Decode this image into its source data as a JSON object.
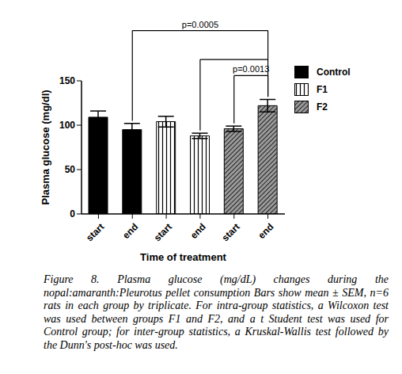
{
  "chart_data": {
    "type": "bar",
    "categories": [
      "start",
      "end",
      "start",
      "end",
      "start",
      "end"
    ],
    "series": [
      {
        "name": "Control",
        "color": "#000000",
        "values": [
          109,
          95,
          null,
          null,
          null,
          null
        ],
        "errors": [
          7,
          7,
          null,
          null,
          null,
          null
        ]
      },
      {
        "name": "F1",
        "color": "#ffffff",
        "values": [
          null,
          null,
          104,
          88,
          null,
          null
        ],
        "errors": [
          null,
          null,
          6,
          3,
          null,
          null
        ]
      },
      {
        "name": "F2",
        "color": "#9a9a9a",
        "values": [
          null,
          null,
          null,
          null,
          96,
          122
        ],
        "errors": [
          null,
          null,
          null,
          null,
          3,
          7
        ]
      }
    ],
    "y_label": "Plasma glucose (mg/dl)",
    "x_label": "Time of treatment",
    "ylim": [
      0,
      150
    ],
    "yticks": [
      0,
      50,
      100,
      150
    ],
    "grid": false,
    "legend": "right",
    "annotations": [
      {
        "text": "p=0.0005",
        "bars": [
          1,
          3,
          5
        ]
      },
      {
        "text": "p=0.0013",
        "bars": [
          4,
          5
        ]
      }
    ],
    "caption": "Figure 8. Plasma glucose (mg/dL) changes during the nopal:amaranth:Pleurotus pellet consumption Bars show mean ± SEM, n=6 rats in each group by triplicate. For intra-group statistics, a Wilcoxon test was used between groups F1 and F2, and a t Student test was used for Control group; for inter-group statistics, a Kruskal-Wallis test followed by the Dunn's post-hoc was used."
  }
}
